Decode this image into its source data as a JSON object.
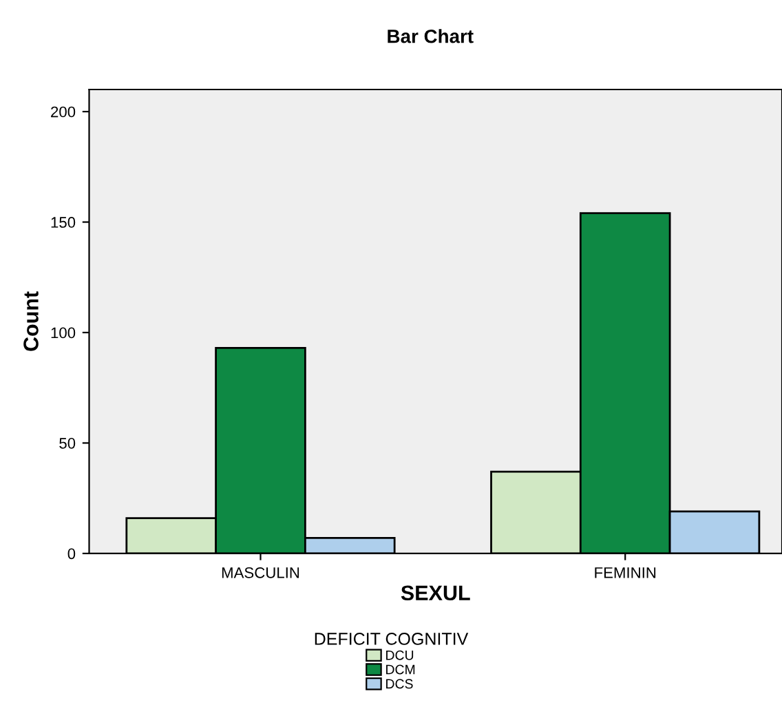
{
  "chart_data": {
    "type": "bar",
    "title": "Bar Chart",
    "xlabel": "SEXUL",
    "ylabel": "Count",
    "legend_title": "DEFICIT COGNITIV",
    "categories": [
      "MASCULIN",
      "FEMININ"
    ],
    "series": [
      {
        "name": "DCU",
        "color": "#d1e8c4",
        "values": [
          16,
          37
        ]
      },
      {
        "name": "DCM",
        "color": "#0e8944",
        "values": [
          93,
          154
        ]
      },
      {
        "name": "DCS",
        "color": "#aecfec",
        "values": [
          7,
          19
        ]
      }
    ],
    "ylim": [
      0,
      210
    ],
    "yticks": [
      0,
      50,
      100,
      150,
      200
    ],
    "grid": false,
    "legend": "bottom"
  }
}
